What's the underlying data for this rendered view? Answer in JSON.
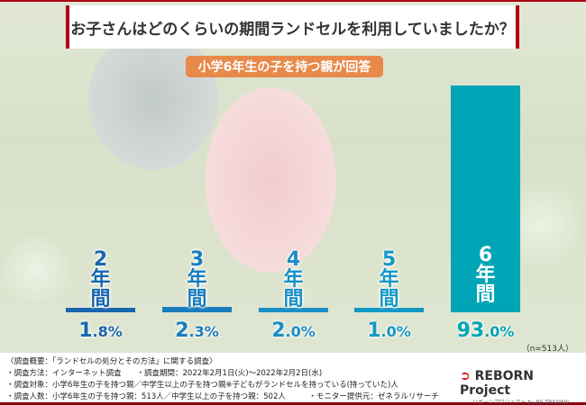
{
  "title": "お子さんはどのくらいの期間ランドセルを利用していましたか？",
  "subtitle_badge": "小学6年生の子を持つ親が回答",
  "sample_note": "（n=513人）",
  "colors": {
    "accent_red": "#b00012",
    "badge": "#e8894a",
    "bar_colors": [
      "#1866ae",
      "#1a7cbd",
      "#1a8fc6",
      "#1399c5",
      "#00a5b5"
    ]
  },
  "chart_data": {
    "type": "bar",
    "categories": [
      "2年間",
      "3年間",
      "4年間",
      "5年間",
      "6年間"
    ],
    "category_chars": [
      [
        "2",
        "年",
        "間"
      ],
      [
        "3",
        "年",
        "間"
      ],
      [
        "4",
        "年",
        "間"
      ],
      [
        "5",
        "年",
        "間"
      ],
      [
        "6",
        "年",
        "間"
      ]
    ],
    "values": [
      1.8,
      2.3,
      2.0,
      1.0,
      93.0
    ],
    "value_labels": [
      [
        "1",
        ".8%"
      ],
      [
        "2",
        ".3%"
      ],
      [
        "2",
        ".0%"
      ],
      [
        "1",
        ".0%"
      ],
      [
        "93",
        ".0%"
      ]
    ],
    "unit": "%",
    "ylim": [
      0,
      93.0
    ],
    "grid": false
  },
  "footer": {
    "lines": [
      "〈調査概要：「ランドセルの処分とその方法」に関する調査〉",
      "・調査方法：インターネット調査　　・調査期間：2022年2月1日(火)～2022年2月2日(水)",
      "・調査対象：小学6年生の子を持つ親／中学生以上の子を持つ親※子どもがランドセルを持っている(持っていた)人",
      "・調査人数：小学6年生の子を持つ親：513人／中学生以上の子を持つ親：502人　　　・モニター提供元：ゼネラルリサーチ"
    ],
    "logo_main": "REBORN Project",
    "logo_sub": "リボーンプロジェクト by RE TRADING"
  }
}
